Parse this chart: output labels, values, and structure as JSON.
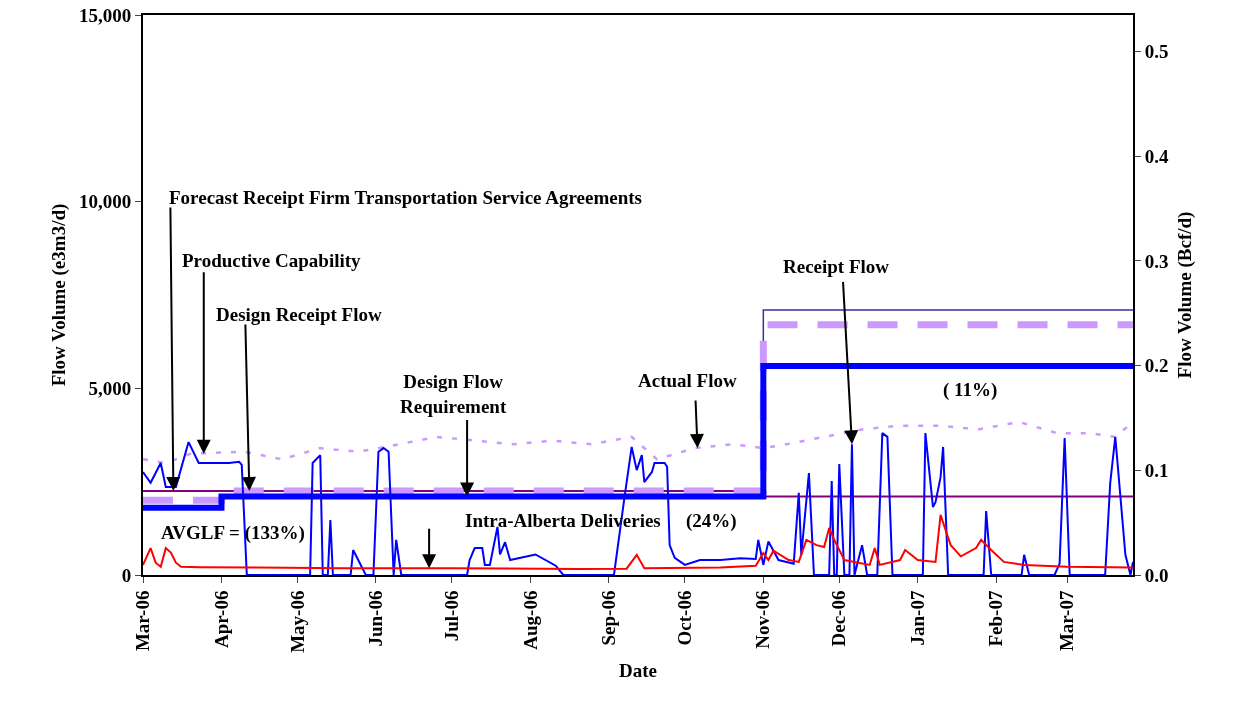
{
  "chart_data": {
    "type": "line",
    "xlabel": "Date",
    "ylabel": "Flow Volume (e3m3/d)",
    "y2label": "Flow Volume (Bcf/d)",
    "xlim": [
      "2006-03-01",
      "2007-03-27"
    ],
    "xticks": [
      {
        "value": "2006-03-01",
        "label": "Mar-06"
      },
      {
        "value": "2006-04-01",
        "label": "Apr-06"
      },
      {
        "value": "2006-05-01",
        "label": "May-06"
      },
      {
        "value": "2006-06-01",
        "label": "Jun-06"
      },
      {
        "value": "2006-07-01",
        "label": "Jul-06"
      },
      {
        "value": "2006-08-01",
        "label": "Aug-06"
      },
      {
        "value": "2006-09-01",
        "label": "Sep-06"
      },
      {
        "value": "2006-10-01",
        "label": "Oct-06"
      },
      {
        "value": "2006-11-01",
        "label": "Nov-06"
      },
      {
        "value": "2006-12-01",
        "label": "Dec-06"
      },
      {
        "value": "2007-01-01",
        "label": "Jan-07"
      },
      {
        "value": "2007-02-01",
        "label": "Feb-07"
      },
      {
        "value": "2007-03-01",
        "label": "Mar-07"
      }
    ],
    "ylim": [
      0,
      15000
    ],
    "yticks": [
      {
        "value": 0,
        "label": "0"
      },
      {
        "value": 5000,
        "label": "5,000"
      },
      {
        "value": 10000,
        "label": "10,000"
      },
      {
        "value": 15000,
        "label": "15,000"
      }
    ],
    "y2lim": [
      0,
      0.535
    ],
    "y2ticks": [
      {
        "value": 0,
        "label": "0.0"
      },
      0.1,
      0.2,
      0.3,
      0.4,
      0.5
    ],
    "grid": false,
    "marker": "none",
    "series": [
      {
        "type": "line",
        "color": "#333399",
        "line_style": "solid",
        "x": [
          "2006-11-01",
          "2006-11-01",
          "2007-03-27"
        ],
        "values": [
          2250,
          7100,
          7100
        ]
      },
      {
        "type": "step",
        "color": "#800080",
        "line_style": "solid",
        "x": [
          "2006-03-01",
          "2006-11-01",
          "2007-03-27"
        ],
        "values": [
          2250,
          2100,
          2100
        ]
      },
      {
        "type": "step",
        "color": "#cc99ff",
        "line_style": "dashed",
        "x": [
          "2006-03-01",
          "2006-04-01",
          "2006-11-01",
          "2007-03-27"
        ],
        "values": [
          2000,
          2250,
          6700,
          6700
        ]
      },
      {
        "type": "step",
        "color": "#0000ff",
        "line_style": "solid",
        "x": [
          "2006-03-01",
          "2006-04-01",
          "2006-11-01",
          "2007-03-27"
        ],
        "values": [
          1800,
          2100,
          5600,
          5600
        ]
      },
      {
        "type": "line",
        "color": "#cc99ff",
        "line_style": "dotted",
        "x": [
          "2006-03-01",
          "2006-03-10",
          "2006-03-20",
          "2006-04-10",
          "2006-04-25",
          "2006-05-10",
          "2006-05-25",
          "2006-06-10",
          "2006-06-25",
          "2006-07-10",
          "2006-07-25",
          "2006-08-10",
          "2006-08-25",
          "2006-09-10",
          "2006-09-20",
          "2006-10-05",
          "2006-10-20",
          "2006-11-01",
          "2006-11-10",
          "2006-11-25",
          "2006-12-10",
          "2006-12-25",
          "2007-01-10",
          "2007-01-25",
          "2007-02-10",
          "2007-02-25",
          "2007-03-10",
          "2007-03-20",
          "2007-03-27"
        ],
        "values": [
          3100,
          3000,
          3250,
          3300,
          3100,
          3400,
          3300,
          3500,
          3700,
          3600,
          3500,
          3600,
          3500,
          3700,
          3100,
          3400,
          3500,
          3400,
          3500,
          3700,
          3900,
          4000,
          4000,
          3900,
          4100,
          3800,
          3800,
          3700,
          4100
        ]
      },
      {
        "type": "line",
        "color": "#0000ff",
        "line_style": "solid",
        "x": [
          "2006-03-01",
          "2006-03-04",
          "2006-03-08",
          "2006-03-10",
          "2006-03-14",
          "2006-03-19",
          "2006-03-23",
          "2006-04-04",
          "2006-04-08",
          "2006-04-09",
          "2006-04-11",
          "2006-05-06",
          "2006-05-07",
          "2006-05-10",
          "2006-05-11",
          "2006-05-13",
          "2006-05-14",
          "2006-05-15",
          "2006-05-22",
          "2006-05-23",
          "2006-05-25",
          "2006-05-28",
          "2006-05-31",
          "2006-06-02",
          "2006-06-04",
          "2006-06-06",
          "2006-06-08",
          "2006-06-09",
          "2006-06-11",
          "2006-07-07",
          "2006-07-08",
          "2006-07-10",
          "2006-07-13",
          "2006-07-14",
          "2006-07-16",
          "2006-07-19",
          "2006-07-20",
          "2006-07-22",
          "2006-07-24",
          "2006-08-03",
          "2006-08-11",
          "2006-08-14",
          "2006-09-03",
          "2006-09-07",
          "2006-09-10",
          "2006-09-12",
          "2006-09-14",
          "2006-09-15",
          "2006-09-18",
          "2006-09-19",
          "2006-09-23",
          "2006-09-24",
          "2006-09-25",
          "2006-09-27",
          "2006-10-01",
          "2006-10-07",
          "2006-10-15",
          "2006-10-23",
          "2006-10-29",
          "2006-10-30",
          "2006-11-01",
          "2006-11-03",
          "2006-11-07",
          "2006-11-13",
          "2006-11-15",
          "2006-11-16",
          "2006-11-19",
          "2006-11-21",
          "2006-11-27",
          "2006-11-28",
          "2006-11-29",
          "2006-11-30",
          "2006-12-01",
          "2006-12-03",
          "2006-12-05",
          "2006-12-06",
          "2006-12-07",
          "2006-12-10",
          "2006-12-12",
          "2006-12-16",
          "2006-12-18",
          "2006-12-20",
          "2006-12-22",
          "2007-01-03",
          "2007-01-04",
          "2007-01-07",
          "2007-01-08",
          "2007-01-10",
          "2007-01-11",
          "2007-01-13",
          "2007-01-27",
          "2007-01-28",
          "2007-01-30",
          "2007-02-11",
          "2007-02-12",
          "2007-02-14",
          "2007-02-24",
          "2007-02-26",
          "2007-02-28",
          "2007-03-02",
          "2007-03-16",
          "2007-03-18",
          "2007-03-20",
          "2007-03-24",
          "2007-03-26",
          "2007-03-27"
        ],
        "values": [
          2760,
          2470,
          3000,
          2360,
          2360,
          3560,
          3000,
          3000,
          3030,
          2950,
          0,
          0,
          3000,
          3210,
          0,
          0,
          1470,
          0,
          0,
          670,
          400,
          0,
          0,
          3300,
          3400,
          3300,
          0,
          940,
          0,
          0,
          400,
          720,
          720,
          270,
          270,
          1290,
          550,
          880,
          400,
          550,
          250,
          0,
          0,
          2000,
          3430,
          2810,
          3210,
          2490,
          2760,
          3000,
          3000,
          2900,
          800,
          460,
          270,
          400,
          400,
          450,
          430,
          940,
          270,
          900,
          400,
          300,
          2200,
          540,
          2730,
          0,
          0,
          2520,
          0,
          0,
          2970,
          0,
          0,
          3500,
          0,
          800,
          0,
          0,
          3800,
          3700,
          0,
          0,
          3800,
          1820,
          1950,
          2620,
          3430,
          0,
          0,
          1710,
          0,
          0,
          540,
          0,
          0,
          300,
          3670,
          0,
          0,
          2460,
          3700,
          540,
          0,
          350
        ]
      },
      {
        "type": "line",
        "color": "#ff0000",
        "line_style": "solid",
        "x": [
          "2006-03-01",
          "2006-03-04",
          "2006-03-06",
          "2006-03-08",
          "2006-03-10",
          "2006-03-12",
          "2006-03-14",
          "2006-03-16",
          "2006-03-24",
          "2006-04-15",
          "2006-05-20",
          "2006-07-01",
          "2006-08-20",
          "2006-09-08",
          "2006-09-12",
          "2006-09-15",
          "2006-10-15",
          "2006-10-29",
          "2006-11-01",
          "2006-11-03",
          "2006-11-05",
          "2006-11-11",
          "2006-11-15",
          "2006-11-18",
          "2006-11-22",
          "2006-11-25",
          "2006-11-27",
          "2006-11-29",
          "2006-12-03",
          "2006-12-13",
          "2006-12-15",
          "2006-12-17",
          "2006-12-25",
          "2006-12-27",
          "2007-01-01",
          "2007-01-08",
          "2007-01-10",
          "2007-01-12",
          "2007-01-14",
          "2007-01-18",
          "2007-01-24",
          "2007-01-26",
          "2007-01-30",
          "2007-02-04",
          "2007-02-12",
          "2007-03-01",
          "2007-03-27"
        ],
        "values": [
          270,
          720,
          330,
          220,
          720,
          600,
          330,
          220,
          210,
          200,
          180,
          180,
          160,
          170,
          540,
          180,
          200,
          250,
          590,
          400,
          650,
          400,
          350,
          940,
          800,
          750,
          1260,
          940,
          400,
          270,
          720,
          270,
          400,
          670,
          400,
          350,
          1610,
          1200,
          800,
          500,
          720,
          940,
          670,
          350,
          270,
          220,
          200
        ]
      }
    ],
    "annotations": [
      {
        "text": "Forecast Receipt Firm Transportation Service Agreements",
        "x": "2006-03-13",
        "y": 2250
      },
      {
        "text": "Productive Capability",
        "x": "2006-03-25",
        "y": 3250
      },
      {
        "text": "Design Receipt Flow",
        "x": "2006-04-12",
        "y": 2250
      },
      {
        "text": "Design Flow\nRequirement",
        "x": "2006-07-07",
        "y": 2100
      },
      {
        "text": "Actual Flow",
        "x": "2006-10-06",
        "y": 3400
      },
      {
        "text": "Receipt Flow",
        "x": "2006-12-06",
        "y": 3500
      },
      {
        "text": "Intra-Alberta Deliveries",
        "x": "2006-06-22",
        "y": 180
      },
      "AVGLF = (133%)",
      "(24%)",
      "( 11%)"
    ]
  }
}
